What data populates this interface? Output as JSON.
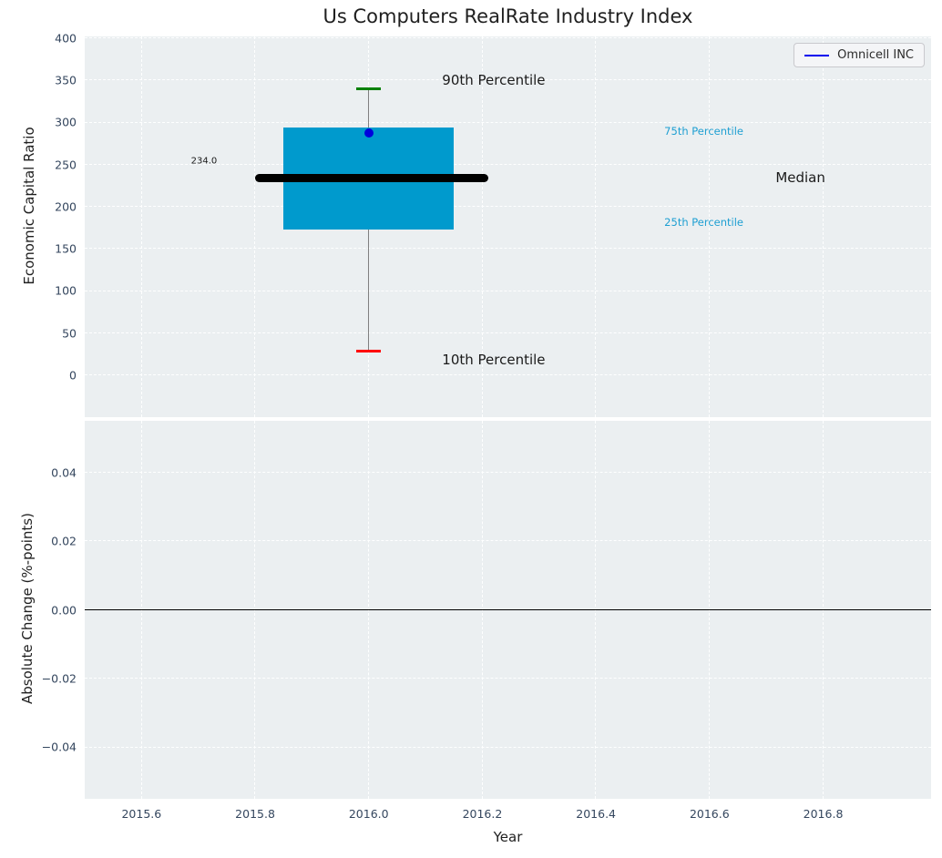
{
  "figure": {
    "title": "Us Computers RealRate Industry Index",
    "bg": "#ffffff",
    "axes_bg": "#ebeff1",
    "grid_color": "#ffffff",
    "tick_color": "#34465e",
    "label_color": "#1f1f1f"
  },
  "legend": {
    "label": "Omnicell INC",
    "line_color": "#0000ee"
  },
  "chart_data": [
    {
      "type": "boxplot",
      "title": "Us Computers RealRate Industry Index",
      "ylabel": "Economic Capital Ratio",
      "xlim": [
        2015.5,
        2016.99
      ],
      "ylim": [
        -50,
        402
      ],
      "grid": true,
      "yticks": [
        {
          "v": 0,
          "label": "0"
        },
        {
          "v": 50,
          "label": "50"
        },
        {
          "v": 100,
          "label": "100"
        },
        {
          "v": 150,
          "label": "150"
        },
        {
          "v": 200,
          "label": "200"
        },
        {
          "v": 250,
          "label": "250"
        },
        {
          "v": 300,
          "label": "300"
        },
        {
          "v": 350,
          "label": "350"
        },
        {
          "v": 400,
          "label": "400"
        }
      ],
      "xticks": [
        {
          "v": 2015.6
        },
        {
          "v": 2015.8
        },
        {
          "v": 2016.0
        },
        {
          "v": 2016.2
        },
        {
          "v": 2016.4
        },
        {
          "v": 2016.6
        },
        {
          "v": 2016.8
        }
      ],
      "box": {
        "x_center": 2016.0,
        "box_left": 2015.85,
        "box_right": 2016.15,
        "p90": 340,
        "p75": 294,
        "median": 234,
        "p25": 173,
        "p10": 28,
        "median_line_left": 2015.8,
        "median_line_right": 2016.21,
        "cap_half_width": 0.022,
        "box_color": "#009acd",
        "median_color": "#000000",
        "p90_cap_color": "#008000",
        "p10_cap_color": "#ff0000",
        "whisker_color": "#808080"
      },
      "series": [
        {
          "name": "Omnicell INC",
          "x": 2016.0,
          "value": 287,
          "color": "#0000dd"
        }
      ],
      "annotations": [
        {
          "name": "p90-label",
          "text": "90th Percentile",
          "x": 2016.22,
          "y": 350,
          "size": 15,
          "color": "#1a1a1a"
        },
        {
          "name": "p10-label",
          "text": "10th Percentile",
          "x": 2016.22,
          "y": 18,
          "size": 15,
          "color": "#1a1a1a"
        },
        {
          "name": "median-value-label",
          "text": "234.0",
          "x": 2015.71,
          "y": 254,
          "size": 10,
          "color": "#1a1a1a"
        },
        {
          "name": "p75-label",
          "text": "75th Percentile",
          "x": 2016.59,
          "y": 290,
          "size": 11.5,
          "color": "#1e9fd2"
        },
        {
          "name": "p25-label",
          "text": "25th Percentile",
          "x": 2016.59,
          "y": 181,
          "size": 11.5,
          "color": "#1e9fd2"
        },
        {
          "name": "median-label",
          "text": "Median",
          "x": 2016.76,
          "y": 234,
          "size": 15,
          "color": "#1a1a1a"
        }
      ],
      "legend": [
        "Omnicell INC"
      ],
      "legend_position": "upper right"
    },
    {
      "type": "line",
      "ylabel": "Absolute Change (%-points)",
      "xlabel": "Year",
      "xlim": [
        2015.5,
        2016.99
      ],
      "ylim": [
        -0.055,
        0.055
      ],
      "grid": true,
      "yticks": [
        {
          "v": -0.04,
          "label": "−0.04"
        },
        {
          "v": -0.02,
          "label": "−0.02"
        },
        {
          "v": 0.0,
          "label": "0.00"
        },
        {
          "v": 0.02,
          "label": "0.02"
        },
        {
          "v": 0.04,
          "label": "0.04"
        }
      ],
      "xticks": [
        {
          "v": 2015.6,
          "label": "2015.6"
        },
        {
          "v": 2015.8,
          "label": "2015.8"
        },
        {
          "v": 2016.0,
          "label": "2016.0"
        },
        {
          "v": 2016.2,
          "label": "2016.2"
        },
        {
          "v": 2016.4,
          "label": "2016.4"
        },
        {
          "v": 2016.6,
          "label": "2016.6"
        },
        {
          "v": 2016.8,
          "label": "2016.8"
        }
      ],
      "series": [],
      "zero_line": {
        "y": 0.0,
        "color": "#000000"
      }
    }
  ]
}
